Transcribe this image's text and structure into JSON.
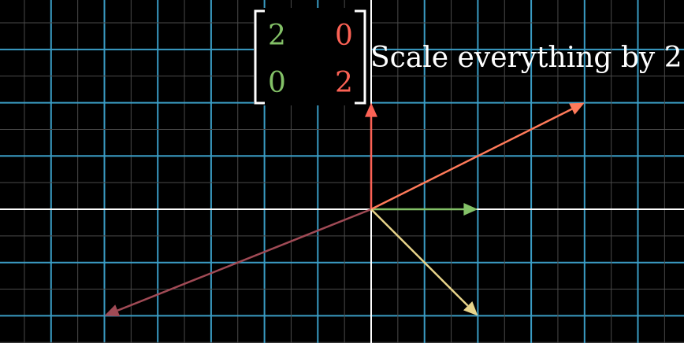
{
  "caption": "Scale everything by 2",
  "matrix": {
    "r1c1": "2",
    "r1c2": "0",
    "r2c1": "0",
    "r2c2": "2",
    "col1_color": "#83c167",
    "col2_color": "#fc6255"
  },
  "grid": {
    "background_color": "#000000",
    "major_line_color": "#3a9cc4",
    "minor_line_color": "#4a4a4a",
    "axis_color": "#ffffff"
  },
  "vectors": [
    {
      "name": "i-hat-scaled",
      "x": 2,
      "y": 0,
      "color": "#83c167"
    },
    {
      "name": "j-hat-scaled",
      "x": 0,
      "y": 2,
      "color": "#fc6255"
    },
    {
      "name": "vector-upper-right",
      "x": 4,
      "y": 2,
      "color": "#ff7a5a"
    },
    {
      "name": "vector-lower-left",
      "x": -5,
      "y": -2,
      "color": "#a04a55"
    },
    {
      "name": "vector-lower-right",
      "x": 2,
      "y": -2,
      "color": "#e8d48a"
    }
  ]
}
